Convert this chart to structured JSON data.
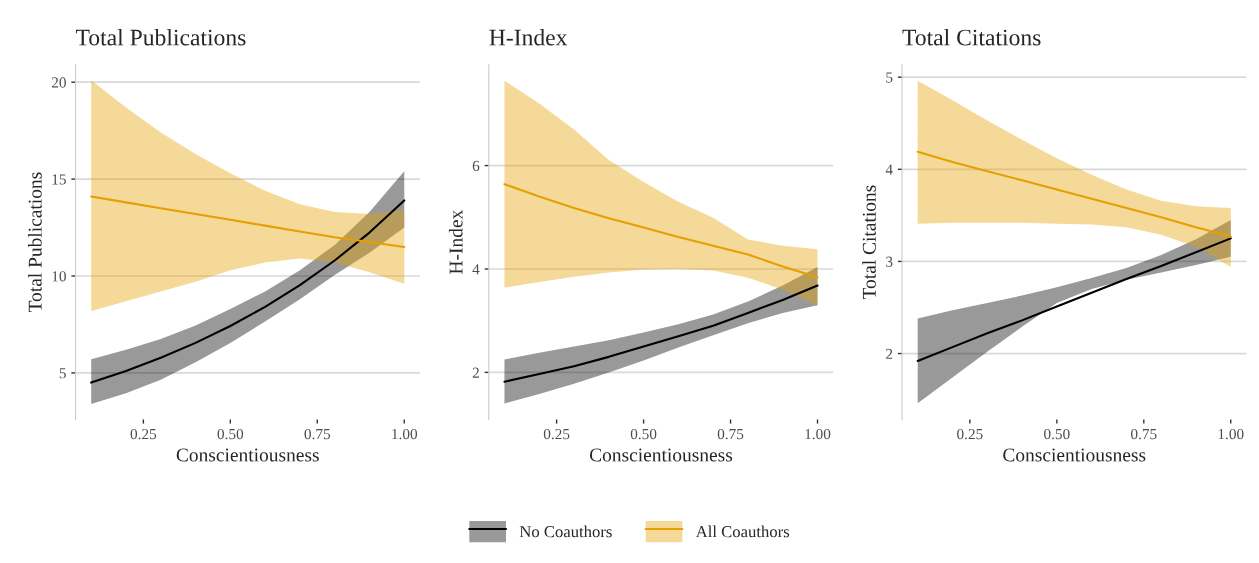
{
  "chart_data": [
    {
      "type": "line",
      "title": "Total Publications",
      "xlabel": "Conscientiousness",
      "ylabel": "Total Publications",
      "x": [
        0.1,
        0.2,
        0.3,
        0.4,
        0.5,
        0.6,
        0.7,
        0.8,
        0.9,
        1.0
      ],
      "xlim": [
        0.055,
        1.045
      ],
      "xticks": [
        {
          "value": 0.25,
          "label": "0.25"
        },
        {
          "value": 0.5,
          "label": "0.50"
        },
        {
          "value": 0.75,
          "label": "0.75"
        },
        {
          "value": 1.0,
          "label": "1.00"
        }
      ],
      "ylim": [
        2.6,
        20.9
      ],
      "yticks": [
        5,
        10,
        15,
        20
      ],
      "grid": "y",
      "legend": "bottom",
      "series": [
        {
          "name": "No Coauthors",
          "color": "#000000",
          "values": [
            4.5,
            5.1,
            5.78,
            6.55,
            7.42,
            8.41,
            9.53,
            10.8,
            12.24,
            13.9
          ],
          "lower": [
            3.4,
            3.95,
            4.65,
            5.55,
            6.55,
            7.65,
            8.8,
            10.05,
            11.2,
            12.5
          ],
          "upper": [
            5.7,
            6.2,
            6.75,
            7.45,
            8.3,
            9.2,
            10.3,
            11.6,
            13.3,
            15.4
          ]
        },
        {
          "name": "All Coauthors",
          "color": "#e69f00",
          "values": [
            14.1,
            13.8,
            13.5,
            13.2,
            12.9,
            12.6,
            12.3,
            12.0,
            11.75,
            11.5
          ],
          "lower": [
            8.2,
            8.7,
            9.2,
            9.7,
            10.3,
            10.7,
            10.9,
            10.7,
            10.2,
            9.6
          ],
          "upper": [
            20.1,
            18.7,
            17.4,
            16.3,
            15.3,
            14.4,
            13.7,
            13.3,
            13.2,
            13.4
          ]
        }
      ]
    },
    {
      "type": "line",
      "title": "H-Index",
      "xlabel": "Conscientiousness",
      "ylabel": "H-Index",
      "x": [
        0.1,
        0.2,
        0.3,
        0.4,
        0.5,
        0.6,
        0.7,
        0.8,
        0.9,
        1.0
      ],
      "xlim": [
        0.055,
        1.045
      ],
      "xticks": [
        {
          "value": 0.25,
          "label": "0.25"
        },
        {
          "value": 0.5,
          "label": "0.50"
        },
        {
          "value": 0.75,
          "label": "0.75"
        },
        {
          "value": 1.0,
          "label": "1.00"
        }
      ],
      "ylim": [
        1.09,
        7.95
      ],
      "yticks": [
        2,
        4,
        6
      ],
      "grid": "y",
      "series": [
        {
          "color": "#000000",
          "values": [
            1.82,
            1.97,
            2.12,
            2.3,
            2.5,
            2.7,
            2.9,
            3.15,
            3.4,
            3.68
          ],
          "lower": [
            1.4,
            1.58,
            1.78,
            2.0,
            2.23,
            2.48,
            2.72,
            2.95,
            3.15,
            3.3
          ],
          "upper": [
            2.25,
            2.38,
            2.5,
            2.62,
            2.77,
            2.93,
            3.12,
            3.37,
            3.68,
            4.04
          ]
        },
        {
          "color": "#e69f00",
          "values": [
            5.64,
            5.4,
            5.18,
            4.98,
            4.8,
            4.62,
            4.45,
            4.28,
            4.05,
            3.84
          ],
          "lower": [
            3.64,
            3.75,
            3.85,
            3.93,
            3.99,
            4.0,
            3.97,
            3.83,
            3.6,
            3.3
          ],
          "upper": [
            7.64,
            7.2,
            6.7,
            6.11,
            5.68,
            5.3,
            4.99,
            4.57,
            4.45,
            4.38
          ]
        }
      ]
    },
    {
      "type": "line",
      "title": "Total Citations",
      "xlabel": "Conscientiousness",
      "ylabel": "Total Citations",
      "x": [
        0.1,
        0.2,
        0.3,
        0.4,
        0.5,
        0.6,
        0.7,
        0.8,
        0.9,
        1.0
      ],
      "xlim": [
        0.055,
        1.045
      ],
      "xticks": [
        {
          "value": 0.25,
          "label": "0.25"
        },
        {
          "value": 0.5,
          "label": "0.50"
        },
        {
          "value": 0.75,
          "label": "0.75"
        },
        {
          "value": 1.0,
          "label": "1.00"
        }
      ],
      "ylim": [
        1.285,
        5.135
      ],
      "yticks": [
        2,
        3,
        4,
        5
      ],
      "grid": "y",
      "series": [
        {
          "color": "#000000",
          "values": [
            1.92,
            2.07,
            2.22,
            2.36,
            2.51,
            2.66,
            2.81,
            2.95,
            3.1,
            3.25
          ],
          "lower": [
            1.46,
            1.74,
            2.02,
            2.29,
            2.55,
            2.7,
            2.8,
            2.88,
            2.96,
            3.05
          ],
          "upper": [
            2.38,
            2.47,
            2.55,
            2.63,
            2.72,
            2.82,
            2.93,
            3.07,
            3.24,
            3.45
          ]
        },
        {
          "color": "#e69f00",
          "values": [
            4.19,
            4.08,
            3.98,
            3.88,
            3.78,
            3.68,
            3.58,
            3.48,
            3.37,
            3.27
          ],
          "lower": [
            3.41,
            3.42,
            3.42,
            3.42,
            3.41,
            3.4,
            3.37,
            3.29,
            3.16,
            2.94
          ],
          "upper": [
            4.96,
            4.75,
            4.53,
            4.32,
            4.12,
            3.94,
            3.78,
            3.66,
            3.6,
            3.58
          ]
        }
      ]
    }
  ]
}
